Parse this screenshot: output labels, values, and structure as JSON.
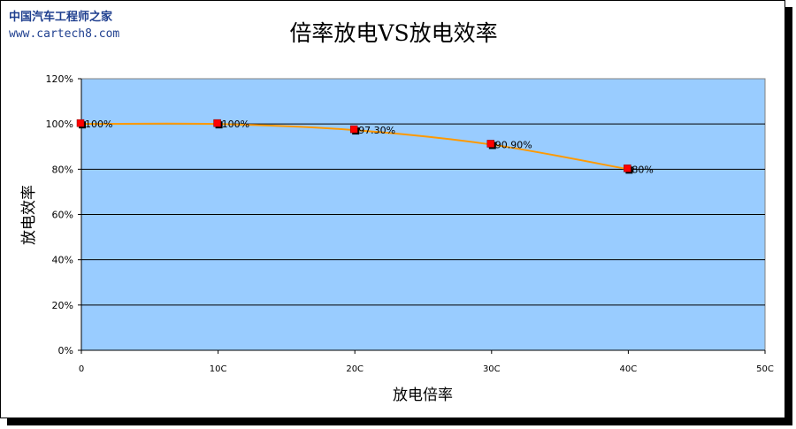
{
  "watermark": {
    "line1": "中国汽车工程师之家",
    "line2": "www.cartech8.com"
  },
  "colors": {
    "plot_bg": "#99ccff",
    "line": "#ff9900",
    "marker": "#ff0000",
    "marker_shadow": "#000000",
    "grid": "#000000"
  },
  "chart_data": {
    "type": "line",
    "title": "倍率放电VS放电效率",
    "xlabel": "放电倍率",
    "ylabel": "放电效率",
    "x": [
      0,
      10,
      20,
      30,
      40
    ],
    "xlim": [
      0,
      50
    ],
    "xticks": [
      0,
      10,
      20,
      30,
      40,
      50
    ],
    "xtick_labels": [
      "0",
      "10C",
      "20C",
      "30C",
      "40C",
      "50C"
    ],
    "ylim": [
      0,
      120
    ],
    "yticks": [
      0,
      20,
      40,
      60,
      80,
      100,
      120
    ],
    "ytick_labels": [
      "0%",
      "20%",
      "40%",
      "60%",
      "80%",
      "100%",
      "120%"
    ],
    "grid": "horizontal",
    "legend": "none",
    "series": [
      {
        "values": [
          100,
          100,
          97.3,
          90.9,
          80
        ],
        "labels": [
          "100%",
          "100%",
          "97.30%",
          "90.90%",
          "80%"
        ]
      }
    ]
  }
}
